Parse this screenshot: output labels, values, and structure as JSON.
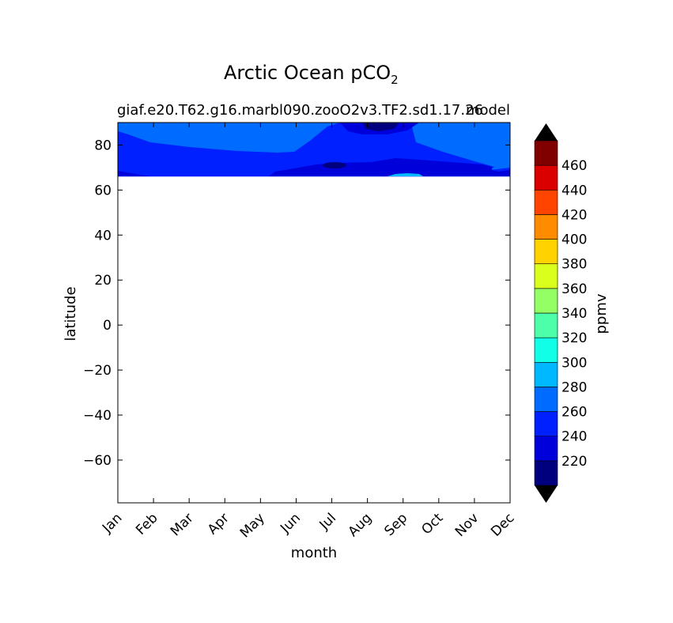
{
  "chart_data": {
    "type": "heatmap",
    "title": "Arctic Ocean pCO",
    "title_subscript": "2",
    "subtitle_left": "giaf.e20.T62.g16.marbl090.zooO2v3.TF2.sd1.17.26",
    "subtitle_right": "model",
    "xlabel": "month",
    "ylabel": "latitude",
    "colorbar_label": "ppmv",
    "x_ticks": [
      "Jan",
      "Feb",
      "Mar",
      "Apr",
      "May",
      "Jun",
      "Jul",
      "Aug",
      "Sep",
      "Oct",
      "Nov",
      "Dec"
    ],
    "y_ticks": [
      80,
      60,
      40,
      20,
      0,
      -20,
      -40,
      -60
    ],
    "y_tick_labels": [
      "80",
      "60",
      "40",
      "20",
      "0",
      "−20",
      "−40",
      "−60"
    ],
    "ylim": [
      -79,
      90
    ],
    "data_lat_range": [
      66,
      90
    ],
    "colorbar": {
      "levels": [
        200,
        220,
        240,
        260,
        280,
        300,
        320,
        340,
        360,
        380,
        400,
        420,
        440,
        460,
        480
      ],
      "tick_values": [
        220,
        240,
        260,
        280,
        300,
        320,
        340,
        360,
        380,
        400,
        420,
        440,
        460
      ],
      "tick_labels": [
        "220",
        "240",
        "260",
        "280",
        "300",
        "320",
        "340",
        "360",
        "380",
        "400",
        "420",
        "440",
        "460"
      ],
      "colors": [
        "#00007f",
        "#0000db",
        "#0020ff",
        "#006cff",
        "#00b8ff",
        "#10ffe6",
        "#4dffa9",
        "#93ff64",
        "#dbff1c",
        "#ffd200",
        "#ff8c00",
        "#ff4400",
        "#db0000",
        "#800000"
      ],
      "extend_under_color": "#000000",
      "extend_over_color": "#000000"
    },
    "regions": [
      {
        "level": 240,
        "color": "#0020ff"
      },
      {
        "level": 260,
        "color": "#006cff"
      },
      {
        "level": 220,
        "color": "#0000db"
      },
      {
        "level": 200,
        "color": "#00007f"
      },
      {
        "level": 280,
        "color": "#00b8ff"
      }
    ]
  }
}
